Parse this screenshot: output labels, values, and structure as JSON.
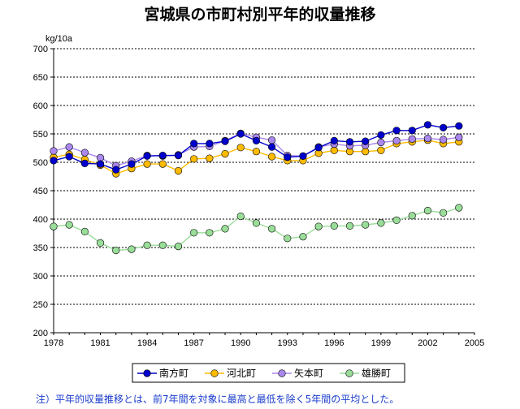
{
  "chart_data": {
    "type": "line",
    "title": "宮城県の市町村別平年的収量推移",
    "ylabel": "kg/10a",
    "xlabel": "",
    "xlim": [
      1978,
      2005
    ],
    "ylim": [
      200,
      700
    ],
    "yticks": [
      200,
      250,
      300,
      350,
      400,
      450,
      500,
      550,
      600,
      650,
      700
    ],
    "xticks": [
      1978,
      1981,
      1984,
      1987,
      1990,
      1993,
      1996,
      1999,
      2002,
      2005
    ],
    "x": [
      1978,
      1979,
      1980,
      1981,
      1982,
      1983,
      1984,
      1985,
      1986,
      1987,
      1988,
      1989,
      1990,
      1991,
      1992,
      1993,
      1994,
      1995,
      1996,
      1997,
      1998,
      1999,
      2000,
      2001,
      2002,
      2003,
      2004
    ],
    "series": [
      {
        "name": "南方町",
        "color": "#0000cc",
        "values": [
          503,
          510,
          498,
          497,
          487,
          497,
          511,
          512,
          512,
          533,
          533,
          537,
          550,
          538,
          527,
          509,
          511,
          526,
          538,
          536,
          537,
          548,
          556,
          556,
          566,
          561,
          564
        ]
      },
      {
        "name": "河北町",
        "color": "#ffbb00",
        "values": [
          509,
          514,
          505,
          495,
          480,
          489,
          497,
          497,
          485,
          506,
          507,
          515,
          526,
          519,
          510,
          503,
          503,
          516,
          521,
          519,
          519,
          521,
          533,
          536,
          539,
          533,
          536
        ]
      },
      {
        "name": "矢本町",
        "color": "#aa88ee",
        "values": [
          520,
          527,
          517,
          508,
          494,
          502,
          512,
          511,
          513,
          527,
          528,
          538,
          551,
          544,
          539,
          512,
          511,
          527,
          532,
          529,
          530,
          535,
          538,
          541,
          542,
          540,
          544
        ]
      },
      {
        "name": "雄勝町",
        "color": "#99dd99",
        "values": [
          387,
          390,
          378,
          358,
          345,
          347,
          354,
          354,
          352,
          376,
          376,
          383,
          405,
          393,
          383,
          366,
          369,
          387,
          388,
          388,
          390,
          393,
          398,
          406,
          415,
          411,
          420
        ]
      }
    ],
    "legend_position": "bottom"
  },
  "note": "注）平年的収量推移とは、前7年間を対象に最高と最低を除く5年間の平均とした。"
}
